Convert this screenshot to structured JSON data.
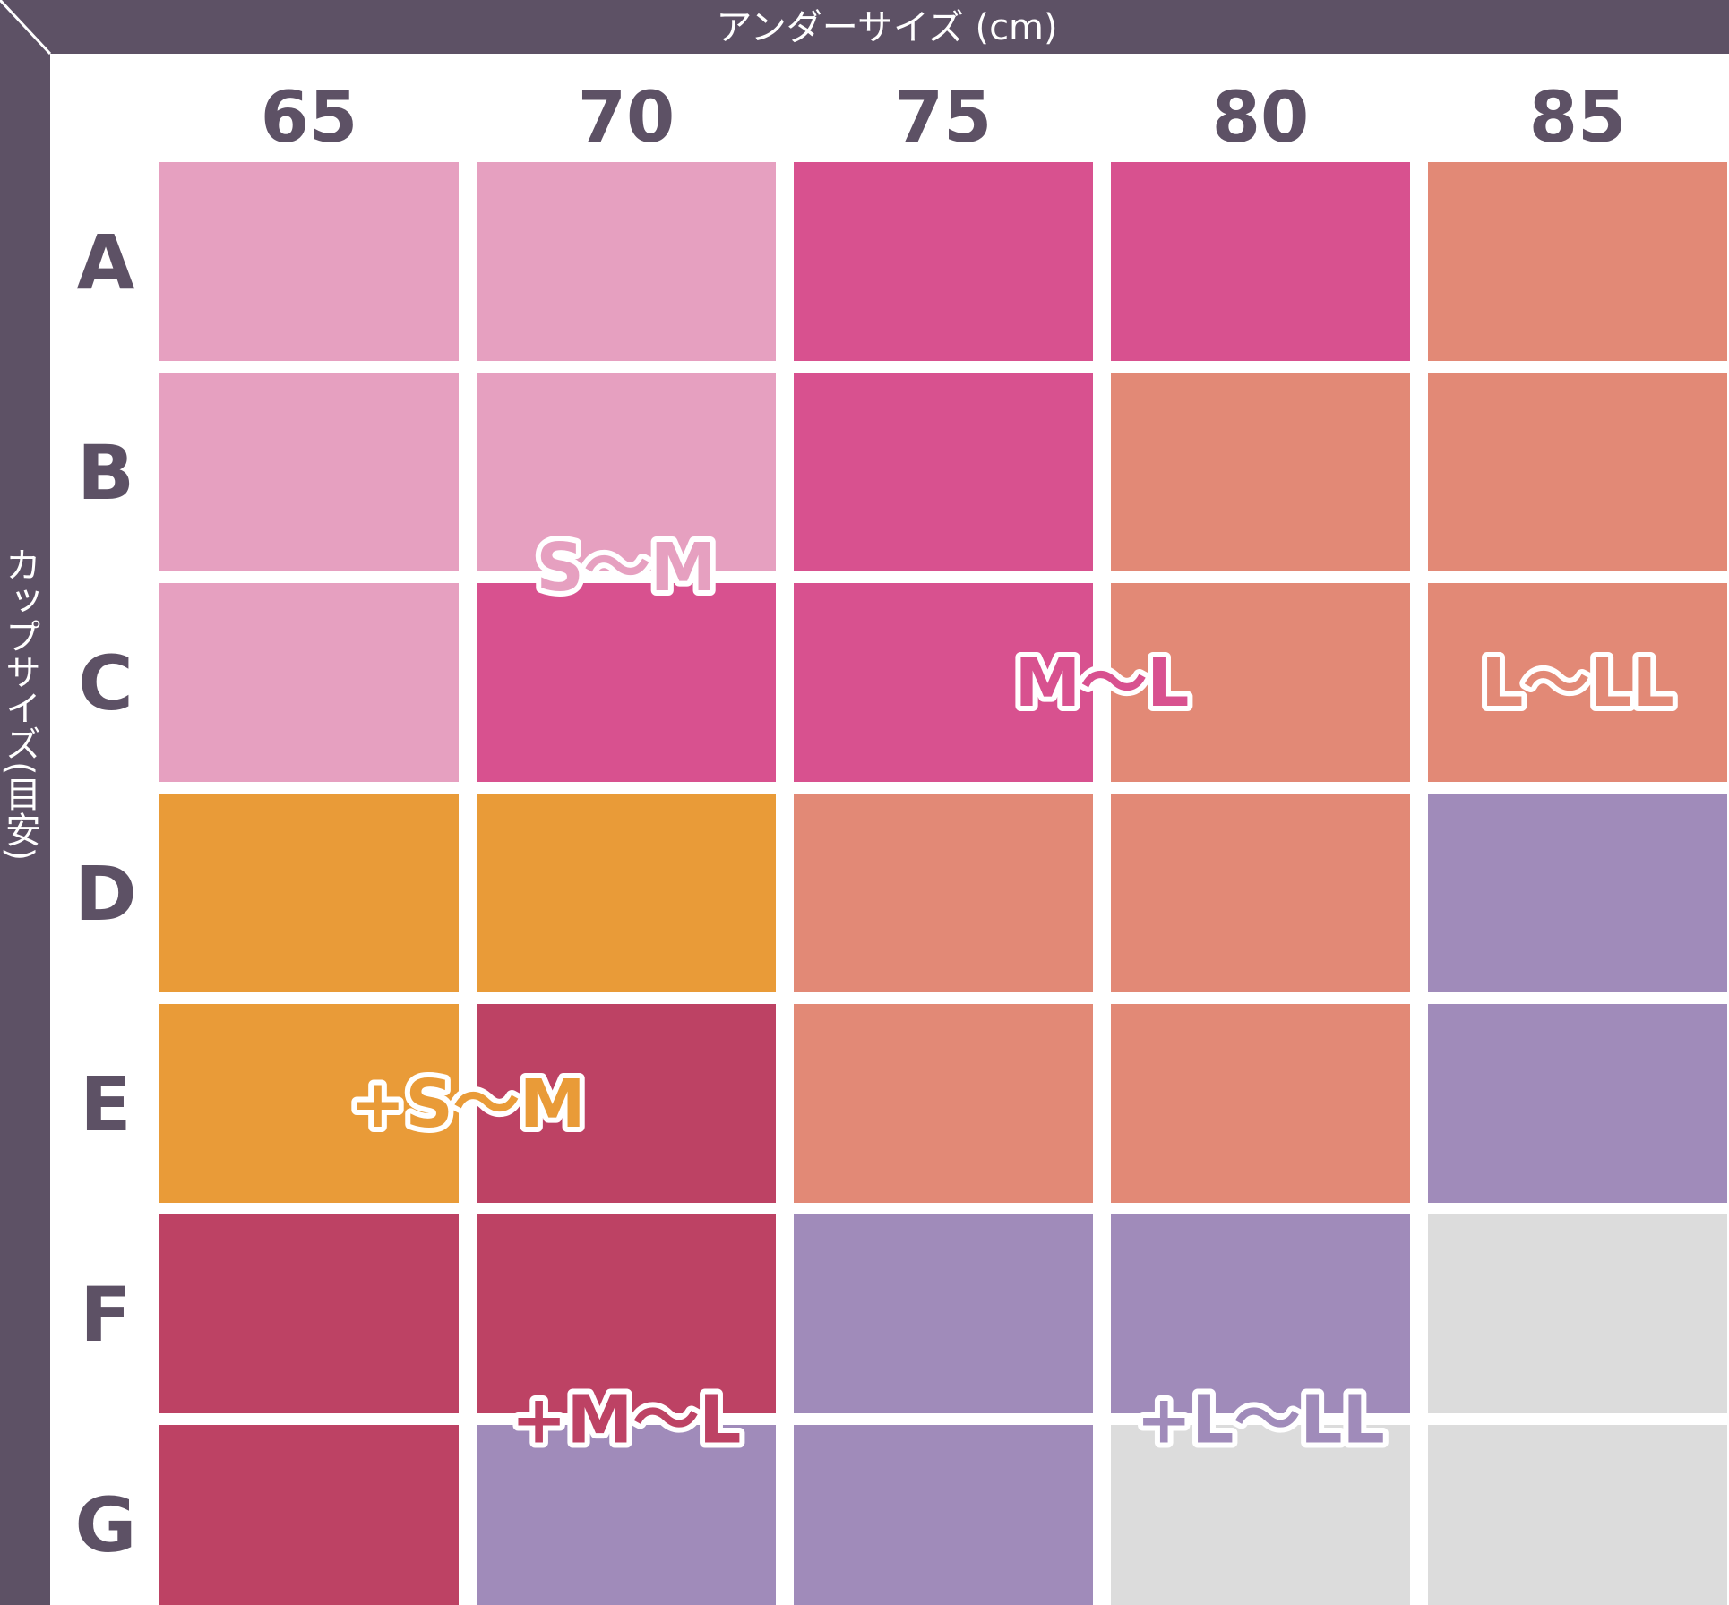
{
  "chart_data": {
    "type": "heatmap",
    "x_axis_title": "アンダーサイズ (cm)",
    "y_axis_title": "カップサイズ(目安)",
    "columns": [
      "65",
      "70",
      "75",
      "80",
      "85"
    ],
    "rows": [
      "A",
      "B",
      "C",
      "D",
      "E",
      "F",
      "G"
    ],
    "group_colors": {
      "S〜M": "#e6a0c0",
      "M〜L": "#d8518f",
      "L〜LL": "#e28976",
      "+S〜M": "#e99b38",
      "+M〜L": "#bd4264",
      "+L〜LL": "#a08bba",
      "none": "#dcdcdc"
    },
    "cells": [
      [
        "S〜M",
        "S〜M",
        "M〜L",
        "M〜L",
        "L〜LL"
      ],
      [
        "S〜M",
        "S〜M",
        "M〜L",
        "L〜LL",
        "L〜LL"
      ],
      [
        "S〜M",
        "M〜L",
        "M〜L",
        "L〜LL",
        "L〜LL"
      ],
      [
        "+S〜M",
        "+S〜M",
        "L〜LL",
        "L〜LL",
        "+L〜LL"
      ],
      [
        "+S〜M",
        "+M〜L",
        "L〜LL",
        "L〜LL",
        "+L〜LL"
      ],
      [
        "+M〜L",
        "+M〜L",
        "+L〜LL",
        "+L〜LL",
        "none"
      ],
      [
        "+M〜L",
        "+L〜LL",
        "+L〜LL",
        "none",
        "none"
      ]
    ],
    "group_labels": [
      {
        "text": "S〜M",
        "group": "S〜M",
        "col": 1.0,
        "row": 1.45
      },
      {
        "text": "M〜L",
        "group": "M〜L",
        "col": 2.5,
        "row": 2.0
      },
      {
        "text": "L〜LL",
        "group": "L〜LL",
        "col": 4.0,
        "row": 2.0
      },
      {
        "text": "+S〜M",
        "group": "+S〜M",
        "col": 0.5,
        "row": 4.0
      },
      {
        "text": "+M〜L",
        "group": "+M〜L",
        "col": 1.0,
        "row": 5.5
      },
      {
        "text": "+L〜LL",
        "group": "+L〜LL",
        "col": 3.0,
        "row": 5.5
      }
    ],
    "frame_color": "#5d5165"
  }
}
